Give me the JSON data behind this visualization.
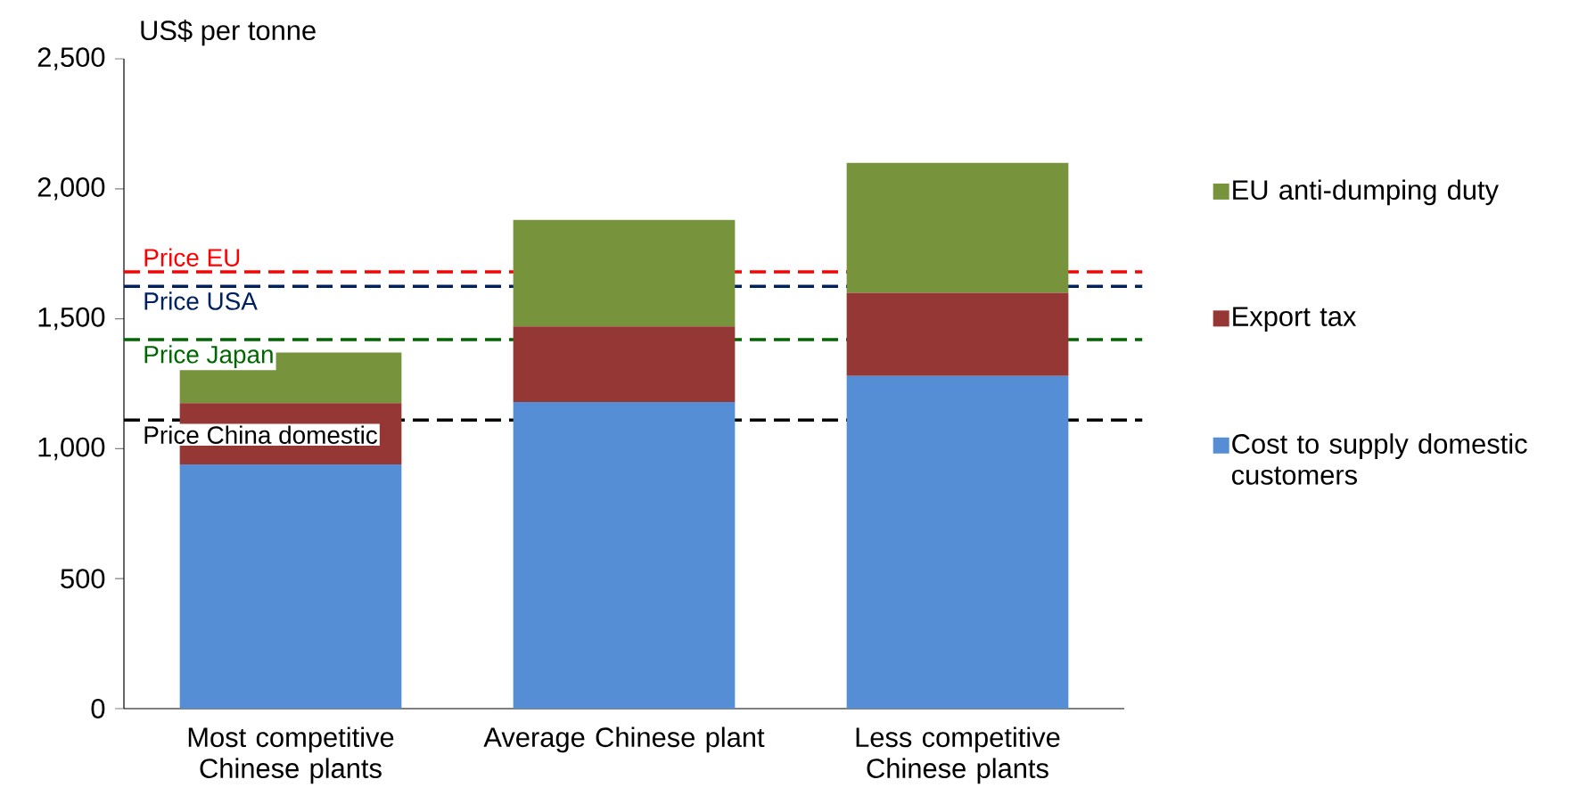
{
  "chart_data": {
    "type": "bar",
    "stacked": true,
    "ylabel": "US$ per tonne",
    "categories": [
      "Most competitive Chinese plants",
      "Average Chinese plant",
      "Less competitive Chinese plants"
    ],
    "series": [
      {
        "name": "Cost to supply domestic customers",
        "color": "#558ed5",
        "values": [
          940,
          1180,
          1280
        ]
      },
      {
        "name": "Export tax",
        "color": "#953735",
        "values": [
          235,
          290,
          320
        ]
      },
      {
        "name": "EU anti-dumping duty",
        "color": "#77933c",
        "values": [
          195,
          410,
          500
        ]
      }
    ],
    "ylim": [
      0,
      2500
    ],
    "yticks": [
      {
        "value": 0,
        "label": "0"
      },
      {
        "value": 500,
        "label": "500"
      },
      {
        "value": 1000,
        "label": "1,000"
      },
      {
        "value": 1500,
        "label": "1,500"
      },
      {
        "value": 2000,
        "label": "2,000"
      },
      {
        "value": 2500,
        "label": "2,500"
      }
    ],
    "ref_lines": [
      {
        "axis": "y",
        "value": 1680,
        "label": "Price EU",
        "color": "#ff0000",
        "line_style": "dashed"
      },
      {
        "axis": "y",
        "value": 1625,
        "label": "Price USA",
        "color": "#002060",
        "line_style": "dashed"
      },
      {
        "axis": "y",
        "value": 1420,
        "label": "Price Japan",
        "color": "#006600",
        "line_style": "dashed"
      },
      {
        "axis": "y",
        "value": 1110,
        "label": "Price China domestic",
        "color": "#000000",
        "line_style": "dashed"
      }
    ],
    "grid": false,
    "legend": "right"
  }
}
